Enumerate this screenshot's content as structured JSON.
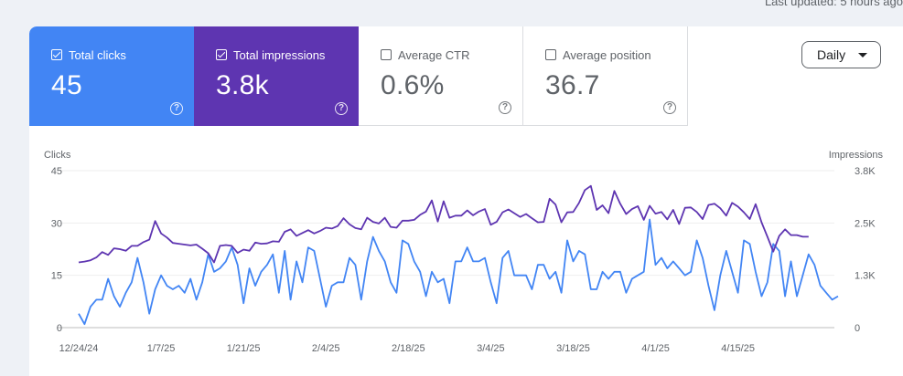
{
  "header": {
    "last_updated": "Last updated: 5 hours ago"
  },
  "metrics": [
    {
      "label": "Total clicks",
      "value": "45",
      "checked": true
    },
    {
      "label": "Total impressions",
      "value": "3.8k",
      "checked": true
    },
    {
      "label": "Average CTR",
      "value": "0.6%",
      "checked": false
    },
    {
      "label": "Average position",
      "value": "36.7",
      "checked": false
    }
  ],
  "help_glyph": "?",
  "dropdown": {
    "value": "Daily"
  },
  "colors": {
    "clicks": "#4285f4",
    "impressions": "#5e35b1"
  },
  "chart_data": {
    "type": "line",
    "y_left_label": "Clicks",
    "y_right_label": "Impressions",
    "y_left_ticks": [
      "0",
      "15",
      "30",
      "45"
    ],
    "y_right_ticks": [
      "0",
      "1.3K",
      "2.5K",
      "3.8K"
    ],
    "ylim_left": [
      0,
      45
    ],
    "ylim_right": [
      0,
      3800
    ],
    "x_tick_labels": [
      "12/24/24",
      "1/7/25",
      "1/21/25",
      "2/4/25",
      "2/18/25",
      "3/4/25",
      "3/18/25",
      "4/1/25",
      "4/15/25"
    ],
    "x_tick_indices": [
      0,
      14,
      28,
      42,
      56,
      70,
      84,
      98,
      112
    ],
    "grid": true,
    "series": [
      {
        "name": "Clicks",
        "axis": "left",
        "values": [
          4,
          1,
          6,
          8,
          8,
          14,
          9,
          6,
          10,
          13,
          20,
          13,
          4,
          11,
          15,
          12,
          11,
          12,
          10,
          14,
          8,
          13,
          21,
          16,
          17,
          19,
          23,
          18,
          7,
          17,
          12,
          16,
          18,
          21,
          10,
          22,
          8,
          19,
          13,
          23,
          22,
          14,
          6,
          12,
          13,
          13,
          20,
          18,
          8,
          19,
          26,
          22,
          19,
          13,
          10,
          25,
          24,
          19,
          16,
          9,
          16,
          13,
          14,
          7,
          19,
          19,
          23,
          19,
          19,
          20,
          13,
          7,
          20,
          22,
          15,
          15,
          15,
          11,
          18,
          18,
          14,
          16,
          10,
          25,
          19,
          22,
          21,
          11,
          11,
          16,
          14,
          16,
          16,
          10,
          14,
          15,
          16,
          31,
          18,
          20,
          17,
          19,
          17,
          15,
          16,
          25,
          20,
          12,
          5,
          15,
          22,
          16,
          10,
          25,
          24,
          16,
          9,
          13,
          24,
          22,
          9,
          19,
          9,
          15,
          21,
          18,
          12,
          10,
          8,
          9
        ]
      },
      {
        "name": "Impressions",
        "axis": "right",
        "values": [
          1580,
          1600,
          1630,
          1700,
          1830,
          1760,
          1920,
          1900,
          1860,
          1980,
          1980,
          2070,
          2130,
          2580,
          2280,
          2180,
          2050,
          2030,
          2010,
          1990,
          2010,
          1910,
          1800,
          1580,
          1980,
          2000,
          1980,
          1810,
          1890,
          1860,
          2060,
          2030,
          2040,
          2090,
          2080,
          2320,
          2380,
          2220,
          2290,
          2360,
          2280,
          2340,
          2420,
          2400,
          2460,
          2650,
          2500,
          2410,
          2380,
          2660,
          2560,
          2520,
          2660,
          2440,
          2420,
          2590,
          2590,
          2610,
          2730,
          2810,
          3080,
          2570,
          3060,
          2660,
          2710,
          2710,
          2840,
          2720,
          2810,
          2870,
          2490,
          2560,
          2790,
          2860,
          2770,
          2680,
          2750,
          2650,
          2550,
          2560,
          3120,
          2980,
          2550,
          2790,
          2800,
          3020,
          3330,
          3430,
          2850,
          2960,
          2770,
          3310,
          3000,
          2750,
          2870,
          2940,
          2610,
          2950,
          2760,
          2800,
          2620,
          2850,
          2510,
          2900,
          2910,
          2800,
          2630,
          2970,
          3000,
          2890,
          2710,
          3020,
          2930,
          2790,
          2630,
          2990,
          2550,
          2200,
          1840,
          2220,
          2380,
          2240,
          2240,
          2200,
          2200
        ]
      }
    ]
  }
}
